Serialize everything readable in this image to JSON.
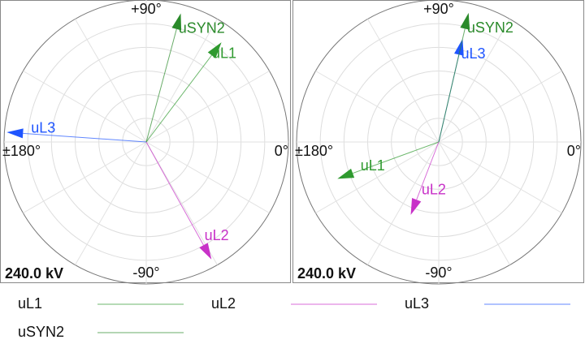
{
  "chart_data": [
    {
      "type": "polar",
      "rlim": [
        0,
        240
      ],
      "rticks": [
        {
          "value": 240,
          "label": "240.0 kV"
        }
      ],
      "rgrid": [
        40,
        80,
        120,
        160,
        200,
        240
      ],
      "anglegrid": [
        0,
        30,
        60,
        90,
        120,
        150,
        180,
        210,
        240,
        270,
        300,
        330
      ],
      "angleticks": [
        {
          "value": 90,
          "label": "+90°"
        },
        {
          "value": 0,
          "label": "0°"
        },
        {
          "value": -90,
          "label": "-90°"
        },
        {
          "value": 180,
          "label": "±180°"
        }
      ],
      "legend": "bottom",
      "series": [
        {
          "name": "uL1",
          "color": "#2f9a2f",
          "r": 211,
          "theta": 53
        },
        {
          "name": "uL2",
          "color": "#c832c8",
          "r": 227,
          "theta": -61
        },
        {
          "name": "uL3",
          "color": "#1f55ff",
          "r": 236,
          "theta": 176
        },
        {
          "name": "uSYN2",
          "color": "#2a8a2a",
          "r": 225,
          "theta": 75
        }
      ]
    },
    {
      "type": "polar",
      "rlim": [
        0,
        240
      ],
      "rticks": [
        {
          "value": 240,
          "label": "240.0 kV"
        }
      ],
      "rgrid": [
        40,
        80,
        120,
        160,
        200,
        240
      ],
      "anglegrid": [
        0,
        30,
        60,
        90,
        120,
        150,
        180,
        210,
        240,
        270,
        300,
        330
      ],
      "angleticks": [
        {
          "value": 90,
          "label": "+90°"
        },
        {
          "value": 0,
          "label": "0°"
        },
        {
          "value": -90,
          "label": "-90°"
        },
        {
          "value": 180,
          "label": "±180°"
        }
      ],
      "series": [
        {
          "name": "uL1",
          "color": "#2f9a2f",
          "r": 182,
          "theta": -160
        },
        {
          "name": "uL2",
          "color": "#c832c8",
          "r": 132,
          "theta": -111
        },
        {
          "name": "uL3",
          "color": "#1f55ff",
          "r": 179,
          "theta": 77
        },
        {
          "name": "uSYN2",
          "color": "#2a8a2a",
          "r": 224,
          "theta": 77
        }
      ]
    }
  ]
}
